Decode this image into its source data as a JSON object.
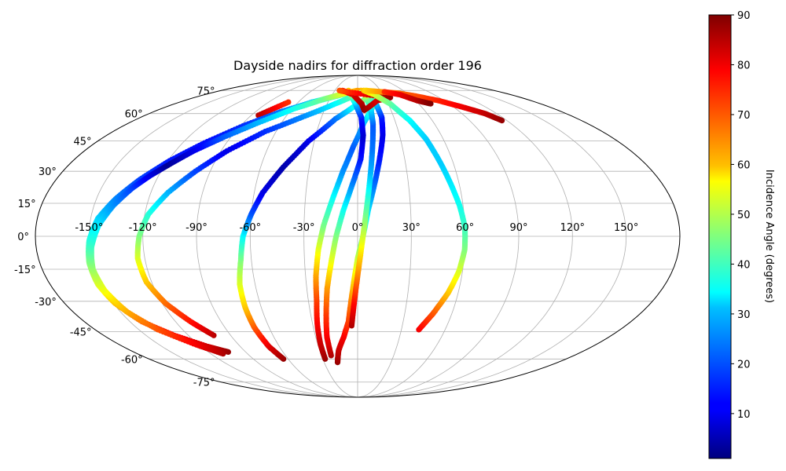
{
  "chart_data": {
    "type": "scatter",
    "projection": "mollweide",
    "title": "Dayside nadirs for diffraction order 196",
    "xlabel": "",
    "ylabel": "",
    "longitude_ticks": [
      -150,
      -120,
      -90,
      -60,
      -30,
      0,
      30,
      60,
      90,
      120,
      150
    ],
    "longitude_tick_labels": [
      "-150°",
      "-120°",
      "-90°",
      "-60°",
      "-30°",
      "0°",
      "30°",
      "60°",
      "90°",
      "120°",
      "150°"
    ],
    "latitude_ticks": [
      -75,
      -60,
      -45,
      -30,
      -15,
      0,
      15,
      30,
      45,
      60,
      75
    ],
    "latitude_tick_labels": [
      "-75°",
      "-60°",
      "-45°",
      "-30°",
      "-15°",
      "0°",
      "15°",
      "30°",
      "45°",
      "60°",
      "75°"
    ],
    "grid": true,
    "colorbar": {
      "label": "Incidence Angle (degrees)",
      "colormap": "jet",
      "range": [
        1,
        90
      ],
      "ticks": [
        10,
        20,
        30,
        40,
        50,
        60,
        70,
        80,
        90
      ],
      "tick_labels": [
        "10",
        "20",
        "30",
        "40",
        "50",
        "60",
        "70",
        "80",
        "90"
      ]
    },
    "tracks": [
      {
        "points": [
          [
            -84,
            59,
            85
          ],
          [
            -70,
            67,
            75
          ]
        ]
      },
      {
        "points": [
          [
            -104,
            -56,
            88
          ],
          [
            -115,
            -53,
            83
          ],
          [
            -130,
            -47,
            78
          ],
          [
            -142,
            -40,
            70
          ],
          [
            -149,
            -31,
            62
          ],
          [
            -152,
            -22,
            54
          ],
          [
            -152,
            -12,
            46
          ],
          [
            -150,
            -2,
            38
          ],
          [
            -146,
            8,
            31
          ],
          [
            -139,
            17,
            24
          ],
          [
            -130,
            26,
            18
          ],
          [
            -119,
            35,
            14
          ],
          [
            -105,
            44,
            13
          ],
          [
            -88,
            53,
            16
          ],
          [
            -68,
            61,
            22
          ],
          [
            -46,
            67,
            30
          ],
          [
            -24,
            71,
            40
          ],
          [
            -8,
            74,
            52
          ],
          [
            5,
            75,
            62
          ]
        ]
      },
      {
        "points": [
          [
            -110,
            -57,
            86
          ],
          [
            -122,
            -52,
            80
          ],
          [
            -137,
            -44,
            72
          ],
          [
            -146,
            -35,
            64
          ],
          [
            -150,
            -25,
            56
          ],
          [
            -151,
            -15,
            48
          ],
          [
            -149,
            -5,
            40
          ],
          [
            -145,
            5,
            33
          ],
          [
            -139,
            14,
            25
          ],
          [
            -132,
            22,
            18
          ],
          [
            -125,
            28,
            10
          ],
          [
            -118,
            33,
            3
          ],
          [
            -108,
            40,
            10
          ],
          [
            -95,
            47,
            20
          ],
          [
            -78,
            55,
            28
          ],
          [
            -58,
            63,
            36
          ],
          [
            -36,
            69,
            44
          ],
          [
            -16,
            73,
            55
          ],
          [
            0,
            75,
            65
          ]
        ]
      },
      {
        "points": [
          [
            -102,
            -47,
            85
          ],
          [
            -110,
            -40,
            78
          ],
          [
            -118,
            -31,
            70
          ],
          [
            -123,
            -21,
            62
          ],
          [
            -124,
            -10,
            54
          ],
          [
            -122,
            0,
            46
          ],
          [
            -118,
            10,
            38
          ],
          [
            -110,
            20,
            28
          ],
          [
            -99,
            30,
            18
          ],
          [
            -86,
            40,
            10
          ],
          [
            -68,
            50,
            16
          ],
          [
            -46,
            58,
            24
          ],
          [
            -22,
            66,
            34
          ],
          [
            -2,
            72,
            44
          ],
          [
            12,
            75,
            52
          ]
        ]
      },
      {
        "points": [
          [
            -64,
            -60,
            88
          ],
          [
            -68,
            -53,
            82
          ],
          [
            -70,
            -43,
            72
          ],
          [
            -70,
            -33,
            62
          ],
          [
            -69,
            -22,
            54
          ],
          [
            -66,
            -11,
            46
          ],
          [
            -64,
            0,
            35
          ],
          [
            -60,
            10,
            20
          ],
          [
            -55,
            20,
            10
          ],
          [
            -46,
            32,
            5
          ],
          [
            -34,
            45,
            10
          ],
          [
            -18,
            57,
            22
          ],
          [
            0,
            66,
            38
          ],
          [
            16,
            72,
            55
          ],
          [
            26,
            74,
            68
          ],
          [
            34,
            73,
            82
          ]
        ]
      },
      {
        "points": [
          [
            -28,
            -60,
            88
          ],
          [
            -28,
            -52,
            84
          ],
          [
            -27,
            -42,
            80
          ],
          [
            -25,
            -30,
            74
          ],
          [
            -24,
            -18,
            65
          ],
          [
            -22,
            -6,
            55
          ],
          [
            -19,
            5,
            45
          ],
          [
            -14,
            18,
            35
          ],
          [
            -9,
            30,
            25
          ],
          [
            -3,
            42,
            20
          ],
          [
            5,
            55,
            28
          ],
          [
            14,
            64,
            40
          ],
          [
            24,
            71,
            55
          ],
          [
            34,
            74,
            70
          ]
        ]
      },
      {
        "points": [
          [
            -22,
            -58,
            86
          ],
          [
            -22,
            -48,
            80
          ],
          [
            -20,
            -36,
            74
          ],
          [
            -18,
            -24,
            66
          ],
          [
            -15,
            -12,
            56
          ],
          [
            -12,
            0,
            46
          ],
          [
            -8,
            12,
            36
          ],
          [
            -3,
            24,
            24
          ],
          [
            2,
            36,
            14
          ],
          [
            4,
            48,
            8
          ],
          [
            3,
            58,
            14
          ],
          [
            -2,
            66,
            28
          ],
          [
            -8,
            72,
            45
          ],
          [
            -12,
            75,
            62
          ]
        ]
      },
      {
        "points": [
          [
            -18,
            -62,
            88
          ],
          [
            -15,
            -55,
            84
          ],
          [
            -10,
            -48,
            80
          ],
          [
            -6,
            -40,
            74
          ],
          [
            -4,
            -30,
            68
          ],
          [
            -2,
            -20,
            60
          ],
          [
            0,
            -10,
            52
          ],
          [
            3,
            0,
            42
          ],
          [
            6,
            12,
            32
          ],
          [
            10,
            24,
            22
          ],
          [
            14,
            36,
            14
          ],
          [
            18,
            48,
            10
          ],
          [
            20,
            58,
            14
          ],
          [
            18,
            66,
            28
          ],
          [
            14,
            72,
            45
          ],
          [
            8,
            75,
            62
          ]
        ]
      },
      {
        "points": [
          [
            -4,
            -42,
            86
          ],
          [
            -2,
            -30,
            78
          ],
          [
            0,
            -18,
            68
          ],
          [
            2,
            -6,
            58
          ],
          [
            4,
            6,
            48
          ],
          [
            6,
            18,
            38
          ],
          [
            8,
            30,
            28
          ],
          [
            10,
            42,
            22
          ],
          [
            12,
            54,
            20
          ],
          [
            12,
            62,
            30
          ],
          [
            10,
            70,
            45
          ],
          [
            8,
            74,
            60
          ]
        ]
      },
      {
        "points": [
          [
            -20,
            75,
            80
          ],
          [
            -5,
            72,
            82
          ],
          [
            4,
            66,
            85
          ],
          [
            6,
            62,
            88
          ],
          [
            20,
            68,
            82
          ],
          [
            36,
            70,
            88
          ],
          [
            -14,
            74,
            75
          ],
          [
            -24,
            75,
            72
          ]
        ]
      },
      {
        "points": [
          [
            42,
            -44,
            80
          ],
          [
            48,
            -36,
            72
          ],
          [
            54,
            -26,
            62
          ],
          [
            58,
            -16,
            54
          ],
          [
            60,
            -6,
            46
          ],
          [
            60,
            4,
            40
          ],
          [
            58,
            14,
            36
          ],
          [
            55,
            24,
            33
          ],
          [
            52,
            34,
            30
          ],
          [
            48,
            46,
            30
          ],
          [
            42,
            56,
            34
          ],
          [
            32,
            66,
            42
          ],
          [
            20,
            72,
            52
          ],
          [
            8,
            75,
            62
          ]
        ]
      },
      {
        "points": [
          [
            10,
            75,
            60
          ],
          [
            30,
            74,
            66
          ],
          [
            50,
            73,
            70
          ],
          [
            66,
            71,
            72
          ],
          [
            84,
            68,
            76
          ],
          [
            98,
            64,
            80
          ],
          [
            110,
            60,
            84
          ],
          [
            116,
            56,
            88
          ]
        ]
      },
      {
        "points": [
          [
            34,
            74,
            75
          ],
          [
            50,
            72,
            80
          ],
          [
            62,
            68,
            85
          ],
          [
            72,
            66,
            90
          ]
        ]
      }
    ]
  }
}
